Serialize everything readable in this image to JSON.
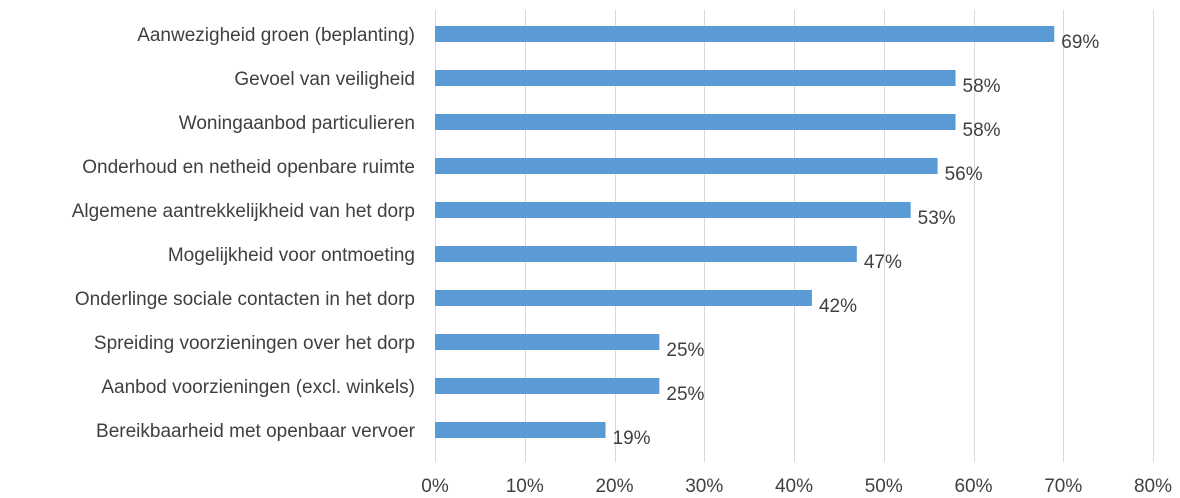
{
  "chart_data": {
    "type": "bar",
    "orientation": "horizontal",
    "title": "",
    "xlabel": "",
    "ylabel": "",
    "categories": [
      "Aanwezigheid groen (beplanting)",
      "Gevoel van veiligheid",
      "Woningaanbod particulieren",
      "Onderhoud en netheid openbare ruimte",
      "Algemene aantrekkelijkheid van het dorp",
      "Mogelijkheid voor ontmoeting",
      "Onderlinge sociale contacten in het dorp",
      "Spreiding voorzieningen over het dorp",
      "Aanbod voorzieningen (excl. winkels)",
      "Bereikbaarheid met openbaar vervoer"
    ],
    "values": [
      69,
      58,
      58,
      56,
      53,
      47,
      42,
      25,
      25,
      19
    ],
    "data_labels": [
      "69%",
      "58%",
      "58%",
      "56%",
      "53%",
      "47%",
      "42%",
      "25%",
      "25%",
      "19%"
    ],
    "xlim": [
      0,
      80
    ],
    "xticks": [
      0,
      10,
      20,
      30,
      40,
      50,
      60,
      70,
      80
    ],
    "xtick_labels": [
      "0%",
      "10%",
      "20%",
      "30%",
      "40%",
      "50%",
      "60%",
      "70%",
      "80%"
    ],
    "grid": true,
    "legend": "none",
    "colors": {
      "bar": "#5b9bd5",
      "text": "#404040",
      "grid": "#d9d9d9"
    }
  }
}
